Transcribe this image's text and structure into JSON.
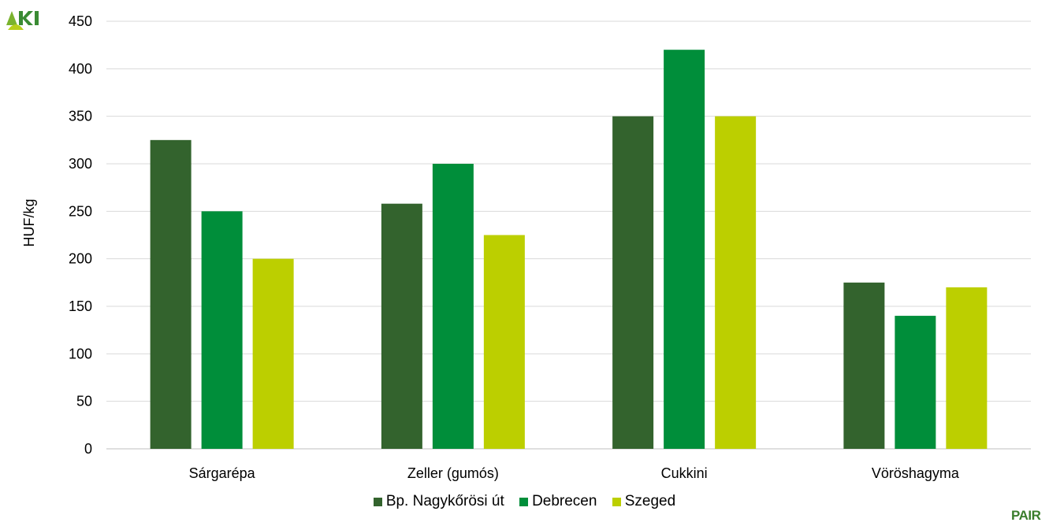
{
  "chart_data": {
    "type": "bar",
    "title": "",
    "xlabel": "",
    "ylabel": "HUF/kg",
    "ylim": [
      0,
      450
    ],
    "yticks": [
      0,
      50,
      100,
      150,
      200,
      250,
      300,
      350,
      400,
      450
    ],
    "categories": [
      "Sárgarépa",
      "Zeller (gumós)",
      "Cukkini",
      "Vöröshagyma"
    ],
    "series": [
      {
        "name": "Bp. Nagykőrösi út",
        "color": "#33632d",
        "values": [
          325,
          258,
          350,
          175
        ]
      },
      {
        "name": "Debrecen",
        "color": "#008e3a",
        "values": [
          250,
          300,
          420,
          140
        ]
      },
      {
        "name": "Szeged",
        "color": "#bccf00",
        "values": [
          200,
          225,
          350,
          170
        ]
      }
    ],
    "grid": true,
    "legend_position": "bottom"
  },
  "logos": {
    "top_left": "AKI",
    "bottom_right": "PAIR"
  }
}
